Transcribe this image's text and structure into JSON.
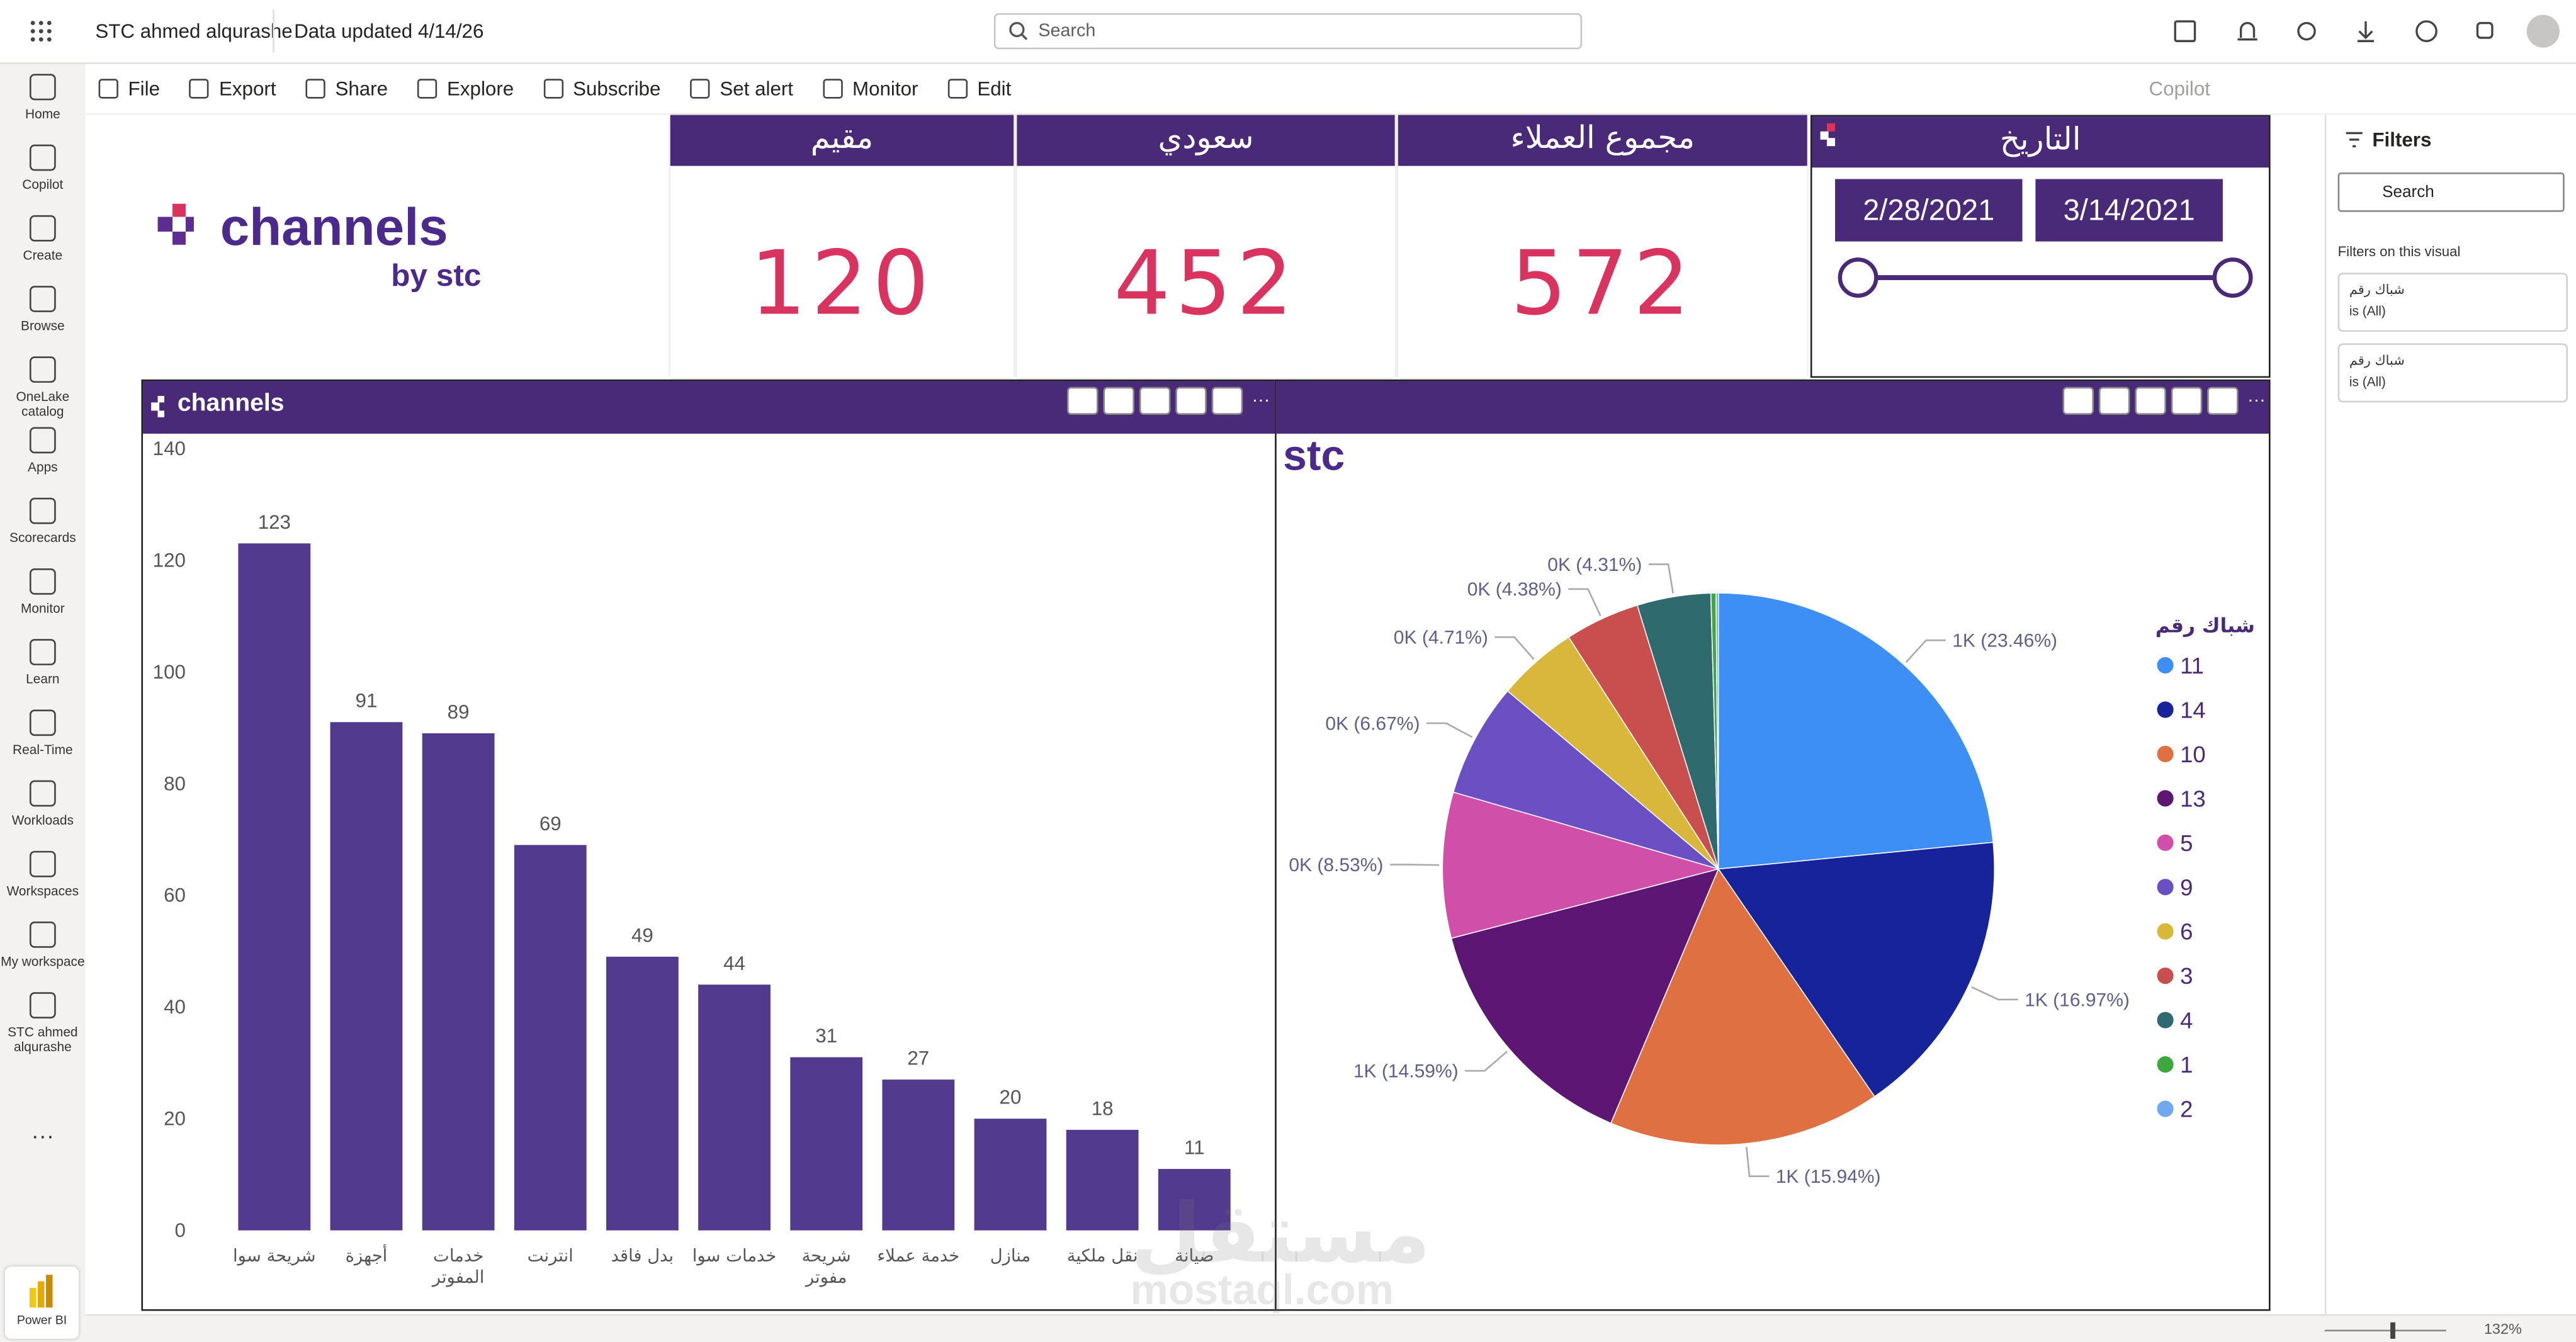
{
  "app": {
    "report_name": "STC ahmed alqurashe",
    "updated": "Data updated 4/14/26",
    "search": "Search",
    "zoom": "132%"
  },
  "toolbar": {
    "items": [
      "File",
      "Export",
      "Share",
      "Explore",
      "Subscribe",
      "Set alert",
      "Monitor",
      "Edit"
    ],
    "copilot": "Copilot"
  },
  "nav": {
    "items": [
      "Home",
      "Copilot",
      "Create",
      "Browse",
      "OneLake catalog",
      "Apps",
      "Scorecards",
      "Monitor",
      "Learn",
      "Real-Time",
      "Workloads",
      "Workspaces",
      "My workspace",
      "STC ahmed alqurashe"
    ],
    "product": "Power BI"
  },
  "logo": {
    "name": "channels",
    "by": "by stc",
    "small": "stc"
  },
  "cards": [
    {
      "title": "مقيم",
      "value": "120"
    },
    {
      "title": "سعودي",
      "value": "452"
    },
    {
      "title": "مجموع العملاء",
      "value": "572"
    }
  ],
  "date_slicer": {
    "title": "التاريخ",
    "start": "2/28/2021",
    "end": "3/14/2021"
  },
  "filters": {
    "title": "Filters",
    "search": "Search",
    "section": "Filters on this visual",
    "cards": [
      {
        "field": "شباك رقم",
        "state": "is (All)"
      },
      {
        "field": "شباك رقم",
        "state": "is (All)"
      }
    ]
  },
  "watermark": [
    "مستقل",
    "mostaql.com"
  ],
  "chart_data": [
    {
      "type": "bar",
      "header": "channels",
      "categories": [
        "شريحة سوا",
        "أجهزة",
        "خدمات المفوتر",
        "انترنت",
        "بدل فاقد",
        "خدمات سوا",
        "شريحة مفوتر",
        "خدمة عملاء",
        "منازل",
        "نقل ملكية",
        "صيانة"
      ],
      "values": [
        123,
        91,
        89,
        69,
        49,
        44,
        31,
        27,
        20,
        18,
        11
      ],
      "color": "#523b8e",
      "ylim": [
        0,
        140
      ],
      "yticks": [
        0,
        20,
        40,
        60,
        80,
        100,
        120,
        140
      ],
      "grid": false
    },
    {
      "type": "pie",
      "legend_title": "شباك رقم",
      "categories": [
        "11",
        "14",
        "10",
        "13",
        "5",
        "9",
        "6",
        "3",
        "4",
        "1",
        "2"
      ],
      "values": [
        23.46,
        16.97,
        15.94,
        14.59,
        8.53,
        6.67,
        4.71,
        4.38,
        4.31,
        0.3,
        0.14
      ],
      "value_labels": [
        "1K (23.46%)",
        "1K (16.97%)",
        "1K (15.94%)",
        "1K (14.59%)",
        "0K (8.53%)",
        "0K (6.67%)",
        "0K (4.71%)",
        "0K (4.38%)",
        "0K (4.31%)",
        null,
        null
      ],
      "colors": [
        "#3d8ef5",
        "#17239a",
        "#de7042",
        "#5e1674",
        "#d04fa9",
        "#6a50c2",
        "#d8b73b",
        "#c94e4e",
        "#2f6a6e",
        "#3ea83e",
        "#70a9f1"
      ]
    }
  ]
}
